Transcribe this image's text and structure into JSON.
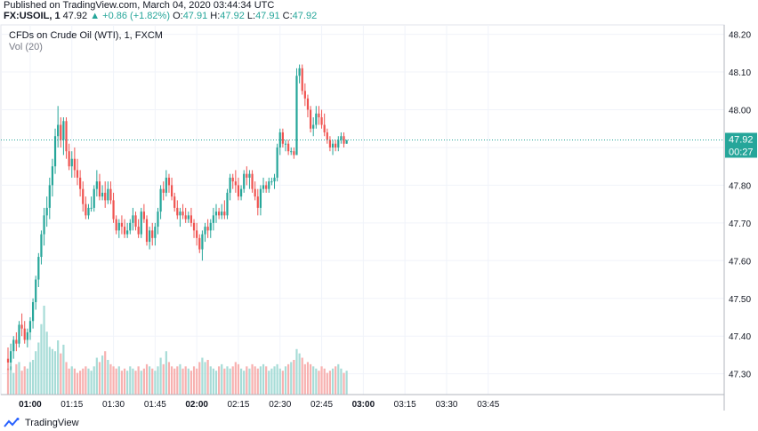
{
  "header": {
    "published": "Published on TradingView.com, March 04, 2020 03:44:34 UTC",
    "symbol": "FX:USOIL, 1",
    "last": "47.92",
    "change": "▲ +0.86 (+1.82%)",
    "o_label": "O:",
    "o_val": "47.91",
    "h_label": "H:",
    "h_val": "47.92",
    "l_label": "L:",
    "l_val": "47.91",
    "c_label": "C:",
    "c_val": "47.92"
  },
  "legend": {
    "title": "CFDs on Crude Oil (WTI), 1, FXCM",
    "volume": "Vol (20)"
  },
  "footer": {
    "brand": "TradingView"
  },
  "colors": {
    "up": "#26a69a",
    "down": "#ef5350",
    "up_vol": "#a7dcd7",
    "down_vol": "#f7b1b0",
    "grid": "#f0f3fa",
    "last_line": "#26a69a"
  },
  "chart_data": {
    "type": "candlestick",
    "title": "CFDs on Crude Oil (WTI), 1, FXCM",
    "y_ticks": [
      "48.20",
      "48.10",
      "48.00",
      "47.90",
      "47.80",
      "47.70",
      "47.60",
      "47.50",
      "47.40",
      "47.30"
    ],
    "y_tick_values": [
      48.2,
      48.1,
      48.0,
      47.9,
      47.8,
      47.7,
      47.6,
      47.5,
      47.4,
      47.3
    ],
    "ylim": [
      47.245,
      48.225
    ],
    "x_ticks": [
      "01:00",
      "01:15",
      "01:30",
      "01:45",
      "02:00",
      "02:15",
      "02:30",
      "02:45",
      "03:00",
      "03:15",
      "03:30",
      "03:45"
    ],
    "x_tick_index": [
      8,
      23,
      38,
      53,
      68,
      83,
      98,
      113,
      128,
      143,
      158,
      173
    ],
    "x_tick_bold": [
      true,
      false,
      false,
      false,
      true,
      false,
      false,
      false,
      true,
      false,
      false,
      false
    ],
    "last_price_label": "47.92",
    "countdown_label": "00:27",
    "last_price": 47.92,
    "candles": [
      [
        47.34,
        47.37,
        47.31,
        47.33
      ],
      [
        47.33,
        47.38,
        47.31,
        47.36
      ],
      [
        47.36,
        47.4,
        47.34,
        47.39
      ],
      [
        47.39,
        47.41,
        47.36,
        47.38
      ],
      [
        47.38,
        47.44,
        47.37,
        47.43
      ],
      [
        47.43,
        47.46,
        47.4,
        47.42
      ],
      [
        47.42,
        47.44,
        47.38,
        47.39
      ],
      [
        47.39,
        47.42,
        47.37,
        47.41
      ],
      [
        47.41,
        47.45,
        47.39,
        47.44
      ],
      [
        47.44,
        47.5,
        47.42,
        47.49
      ],
      [
        47.49,
        47.56,
        47.47,
        47.55
      ],
      [
        47.55,
        47.62,
        47.53,
        47.61
      ],
      [
        47.61,
        47.68,
        47.59,
        47.67
      ],
      [
        47.67,
        47.74,
        47.64,
        47.72
      ],
      [
        47.72,
        47.77,
        47.69,
        47.74
      ],
      [
        47.74,
        47.82,
        47.71,
        47.8
      ],
      [
        47.8,
        47.87,
        47.77,
        47.85
      ],
      [
        47.85,
        47.95,
        47.83,
        47.93
      ],
      [
        47.93,
        48.01,
        47.9,
        47.96
      ],
      [
        47.96,
        47.98,
        47.9,
        47.92
      ],
      [
        47.92,
        47.98,
        47.88,
        47.97
      ],
      [
        47.97,
        47.98,
        47.87,
        47.89
      ],
      [
        47.89,
        47.91,
        47.84,
        47.85
      ],
      [
        47.85,
        47.89,
        47.82,
        47.87
      ],
      [
        47.87,
        47.9,
        47.82,
        47.84
      ],
      [
        47.84,
        47.87,
        47.8,
        47.82
      ],
      [
        47.82,
        47.84,
        47.77,
        47.79
      ],
      [
        47.79,
        47.81,
        47.73,
        47.75
      ],
      [
        47.75,
        47.77,
        47.71,
        47.72
      ],
      [
        47.72,
        47.75,
        47.71,
        47.74
      ],
      [
        47.74,
        47.77,
        47.73,
        47.74
      ],
      [
        47.74,
        47.8,
        47.73,
        47.79
      ],
      [
        47.79,
        47.84,
        47.77,
        47.81
      ],
      [
        47.81,
        47.83,
        47.76,
        47.77
      ],
      [
        47.77,
        47.8,
        47.76,
        47.78
      ],
      [
        47.78,
        47.81,
        47.74,
        47.76
      ],
      [
        47.76,
        47.81,
        47.75,
        47.79
      ],
      [
        47.79,
        47.81,
        47.75,
        47.76
      ],
      [
        47.76,
        47.78,
        47.7,
        47.71
      ],
      [
        47.71,
        47.72,
        47.67,
        47.68
      ],
      [
        47.68,
        47.71,
        47.66,
        47.7
      ],
      [
        47.7,
        47.72,
        47.67,
        47.69
      ],
      [
        47.69,
        47.71,
        47.66,
        47.67
      ],
      [
        47.67,
        47.7,
        47.66,
        47.68
      ],
      [
        47.68,
        47.71,
        47.67,
        47.7
      ],
      [
        47.7,
        47.74,
        47.68,
        47.72
      ],
      [
        47.72,
        47.73,
        47.68,
        47.69
      ],
      [
        47.69,
        47.71,
        47.66,
        47.67
      ],
      [
        47.67,
        47.74,
        47.66,
        47.73
      ],
      [
        47.73,
        47.75,
        47.7,
        47.71
      ],
      [
        47.71,
        47.72,
        47.64,
        47.65
      ],
      [
        47.65,
        47.69,
        47.63,
        47.68
      ],
      [
        47.68,
        47.7,
        47.64,
        47.66
      ],
      [
        47.66,
        47.7,
        47.64,
        47.69
      ],
      [
        47.69,
        47.74,
        47.67,
        47.73
      ],
      [
        47.73,
        47.8,
        47.71,
        47.79
      ],
      [
        47.79,
        47.81,
        47.76,
        47.78
      ],
      [
        47.78,
        47.84,
        47.77,
        47.82
      ],
      [
        47.82,
        47.83,
        47.78,
        47.8
      ],
      [
        47.8,
        47.82,
        47.76,
        47.77
      ],
      [
        47.77,
        47.78,
        47.73,
        47.74
      ],
      [
        47.74,
        47.76,
        47.71,
        47.72
      ],
      [
        47.72,
        47.74,
        47.69,
        47.73
      ],
      [
        47.73,
        47.75,
        47.71,
        47.72
      ],
      [
        47.72,
        47.74,
        47.7,
        47.71
      ],
      [
        47.71,
        47.73,
        47.7,
        47.72
      ],
      [
        47.72,
        47.74,
        47.69,
        47.7
      ],
      [
        47.7,
        47.71,
        47.66,
        47.68
      ],
      [
        47.68,
        47.7,
        47.64,
        47.66
      ],
      [
        47.66,
        47.67,
        47.62,
        47.63
      ],
      [
        47.63,
        47.68,
        47.6,
        47.67
      ],
      [
        47.67,
        47.7,
        47.65,
        47.69
      ],
      [
        47.69,
        47.71,
        47.66,
        47.68
      ],
      [
        47.68,
        47.71,
        47.66,
        47.7
      ],
      [
        47.7,
        47.74,
        47.68,
        47.72
      ],
      [
        47.72,
        47.75,
        47.7,
        47.73
      ],
      [
        47.73,
        47.74,
        47.71,
        47.72
      ],
      [
        47.72,
        47.75,
        47.71,
        47.73
      ],
      [
        47.73,
        47.76,
        47.71,
        47.72
      ],
      [
        47.72,
        47.79,
        47.71,
        47.78
      ],
      [
        47.78,
        47.83,
        47.76,
        47.82
      ],
      [
        47.82,
        47.83,
        47.79,
        47.81
      ],
      [
        47.81,
        47.84,
        47.78,
        47.8
      ],
      [
        47.8,
        47.82,
        47.76,
        47.77
      ],
      [
        47.77,
        47.8,
        47.76,
        47.79
      ],
      [
        47.79,
        47.84,
        47.78,
        47.83
      ],
      [
        47.83,
        47.85,
        47.8,
        47.82
      ],
      [
        47.82,
        47.84,
        47.79,
        47.83
      ],
      [
        47.83,
        47.84,
        47.78,
        47.79
      ],
      [
        47.79,
        47.81,
        47.76,
        47.77
      ],
      [
        47.77,
        47.79,
        47.72,
        47.74
      ],
      [
        47.74,
        47.8,
        47.72,
        47.79
      ],
      [
        47.79,
        47.82,
        47.78,
        47.8
      ],
      [
        47.8,
        47.81,
        47.78,
        47.79
      ],
      [
        47.79,
        47.82,
        47.78,
        47.81
      ],
      [
        47.81,
        47.82,
        47.8,
        47.81
      ],
      [
        47.81,
        47.83,
        47.79,
        47.82
      ],
      [
        47.82,
        47.91,
        47.81,
        47.9
      ],
      [
        47.9,
        47.95,
        47.88,
        47.94
      ],
      [
        47.94,
        47.95,
        47.9,
        47.91
      ],
      [
        47.91,
        47.92,
        47.89,
        47.91
      ],
      [
        47.91,
        47.92,
        47.88,
        47.89
      ],
      [
        47.89,
        47.9,
        47.88,
        47.89
      ],
      [
        47.89,
        47.9,
        47.87,
        47.88
      ],
      [
        47.88,
        48.11,
        47.88,
        48.09
      ],
      [
        48.09,
        48.12,
        48.07,
        48.11
      ],
      [
        48.11,
        48.12,
        48.04,
        48.05
      ],
      [
        48.05,
        48.07,
        48.01,
        48.03
      ],
      [
        48.03,
        48.04,
        47.98,
        48.0
      ],
      [
        48.0,
        48.01,
        47.94,
        47.95
      ],
      [
        47.95,
        47.98,
        47.93,
        47.96
      ],
      [
        47.96,
        48.01,
        47.95,
        47.99
      ],
      [
        47.99,
        48.01,
        47.96,
        47.98
      ],
      [
        47.98,
        48.0,
        47.95,
        47.96
      ],
      [
        47.96,
        47.99,
        47.93,
        47.94
      ],
      [
        47.94,
        47.95,
        47.91,
        47.92
      ],
      [
        47.92,
        47.93,
        47.89,
        47.9
      ],
      [
        47.9,
        47.92,
        47.88,
        47.91
      ],
      [
        47.91,
        47.92,
        47.89,
        47.9
      ],
      [
        47.9,
        47.93,
        47.89,
        47.92
      ],
      [
        47.92,
        47.94,
        47.91,
        47.93
      ],
      [
        47.93,
        47.94,
        47.9,
        47.91
      ],
      [
        47.91,
        47.92,
        47.91,
        47.92
      ]
    ],
    "volumes": [
      24,
      26,
      20,
      28,
      30,
      22,
      26,
      24,
      30,
      32,
      40,
      48,
      65,
      82,
      58,
      44,
      42,
      40,
      50,
      38,
      46,
      30,
      24,
      26,
      24,
      20,
      22,
      24,
      26,
      24,
      22,
      26,
      34,
      30,
      36,
      40,
      32,
      28,
      26,
      24,
      26,
      22,
      24,
      22,
      26,
      24,
      22,
      26,
      22,
      24,
      28,
      26,
      24,
      22,
      26,
      34,
      28,
      40,
      30,
      26,
      24,
      26,
      28,
      24,
      26,
      24,
      22,
      26,
      24,
      30,
      34,
      30,
      32,
      26,
      24,
      22,
      26,
      28,
      24,
      26,
      24,
      26,
      30,
      28,
      24,
      22,
      26,
      24,
      28,
      26,
      24,
      26,
      28,
      26,
      22,
      24,
      26,
      28,
      24,
      22,
      26,
      28,
      30,
      32,
      42,
      38,
      34,
      28,
      30,
      28,
      26,
      24,
      22,
      26,
      24,
      20,
      22,
      24,
      26,
      28,
      24,
      20,
      22,
      18
    ]
  }
}
